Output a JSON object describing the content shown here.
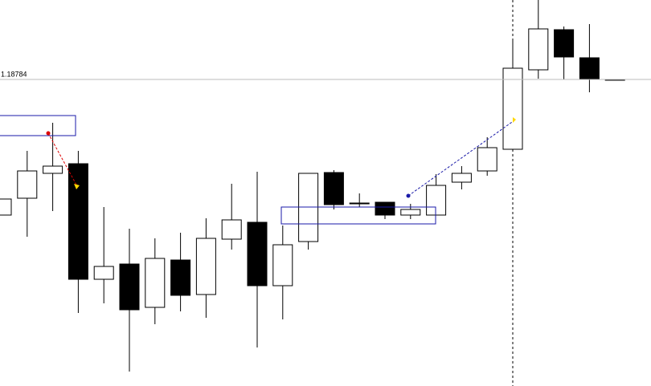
{
  "chart_data": {
    "type": "candlestick",
    "price_line": {
      "value": 1.18784,
      "label": "1.18784"
    },
    "ylim": [
      1.1802,
      1.18982
    ],
    "up_color": "#ffffff",
    "down_color": "#000000",
    "candles": [
      {
        "open": 1.18446,
        "high": 1.18486,
        "low": 1.18446,
        "close": 1.18486
      },
      {
        "open": 1.18488,
        "high": 1.18606,
        "low": 1.18392,
        "close": 1.18556
      },
      {
        "open": 1.1855,
        "high": 1.18676,
        "low": 1.18456,
        "close": 1.18568
      },
      {
        "open": 1.18574,
        "high": 1.18606,
        "low": 1.18202,
        "close": 1.18286
      },
      {
        "open": 1.18286,
        "high": 1.18466,
        "low": 1.18226,
        "close": 1.18318
      },
      {
        "open": 1.18324,
        "high": 1.18412,
        "low": 1.18056,
        "close": 1.1821
      },
      {
        "open": 1.18216,
        "high": 1.18388,
        "low": 1.18174,
        "close": 1.18338
      },
      {
        "open": 1.18334,
        "high": 1.18402,
        "low": 1.18206,
        "close": 1.18246
      },
      {
        "open": 1.18248,
        "high": 1.18438,
        "low": 1.1819,
        "close": 1.18388
      },
      {
        "open": 1.18386,
        "high": 1.18524,
        "low": 1.1836,
        "close": 1.18434
      },
      {
        "open": 1.18428,
        "high": 1.18554,
        "low": 1.18116,
        "close": 1.1827
      },
      {
        "open": 1.1827,
        "high": 1.1842,
        "low": 1.18186,
        "close": 1.18372
      },
      {
        "open": 1.1838,
        "high": 1.1855,
        "low": 1.1836,
        "close": 1.1855
      },
      {
        "open": 1.18552,
        "high": 1.18558,
        "low": 1.1846,
        "close": 1.18472
      },
      {
        "open": 1.18474,
        "high": 1.185,
        "low": 1.18466,
        "close": 1.18476
      },
      {
        "open": 1.18478,
        "high": 1.18478,
        "low": 1.18436,
        "close": 1.18446
      },
      {
        "open": 1.18446,
        "high": 1.18474,
        "low": 1.18436,
        "close": 1.1846
      },
      {
        "open": 1.18446,
        "high": 1.18548,
        "low": 1.18446,
        "close": 1.1852
      },
      {
        "open": 1.18528,
        "high": 1.18568,
        "low": 1.1851,
        "close": 1.1855
      },
      {
        "open": 1.18556,
        "high": 1.1864,
        "low": 1.18544,
        "close": 1.18614
      },
      {
        "open": 1.1861,
        "high": 1.18886,
        "low": 1.1861,
        "close": 1.18812
      },
      {
        "open": 1.18808,
        "high": 1.18982,
        "low": 1.18786,
        "close": 1.1891
      },
      {
        "open": 1.18908,
        "high": 1.18916,
        "low": 1.18784,
        "close": 1.1884
      },
      {
        "open": 1.18838,
        "high": 1.18922,
        "low": 1.18752,
        "close": 1.18784
      },
      {
        "open": 1.18784,
        "high": 1.18784,
        "low": 1.18784,
        "close": 1.18784
      }
    ]
  }
}
